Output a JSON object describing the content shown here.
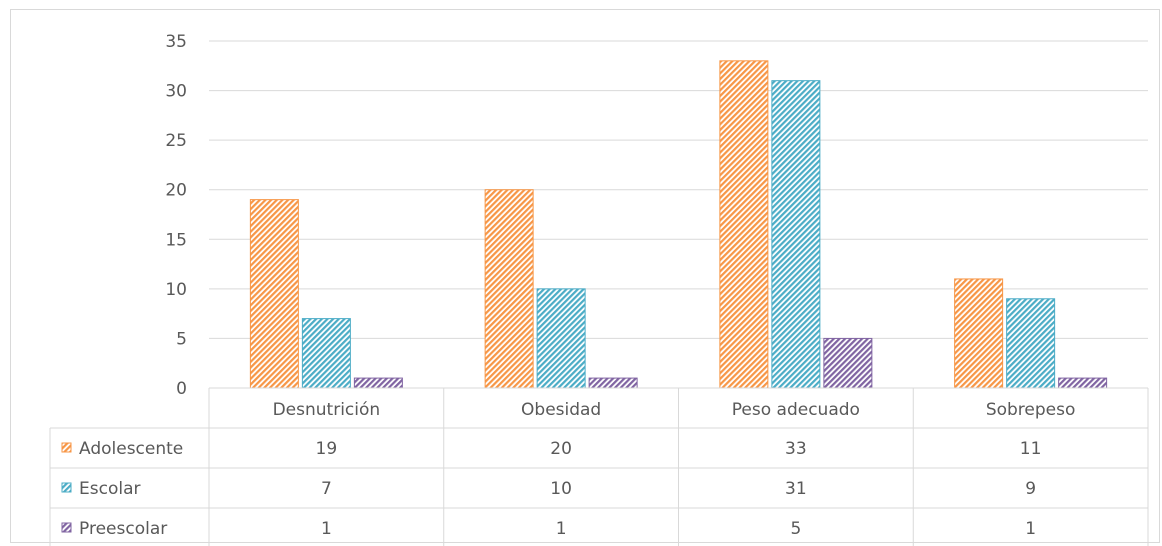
{
  "chart_data": {
    "type": "bar",
    "categories": [
      "Desnutrición",
      "Obesidad",
      "Peso adecuado",
      "Sobrepeso"
    ],
    "series": [
      {
        "name": "Adolescente",
        "values": [
          19,
          20,
          33,
          11
        ],
        "color": "#F79646",
        "pattern": "diagonal-hatch"
      },
      {
        "name": "Escolar",
        "values": [
          7,
          10,
          31,
          9
        ],
        "color": "#4BACC6",
        "pattern": "diagonal-hatch"
      },
      {
        "name": "Preescolar",
        "values": [
          1,
          1,
          5,
          1
        ],
        "color": "#8064A2",
        "pattern": "diagonal-hatch"
      }
    ],
    "ylim": [
      0,
      35
    ],
    "yticks": [
      0,
      5,
      10,
      15,
      20,
      25,
      30,
      35
    ],
    "grid": true,
    "legend": "data-table",
    "data_table": true
  }
}
